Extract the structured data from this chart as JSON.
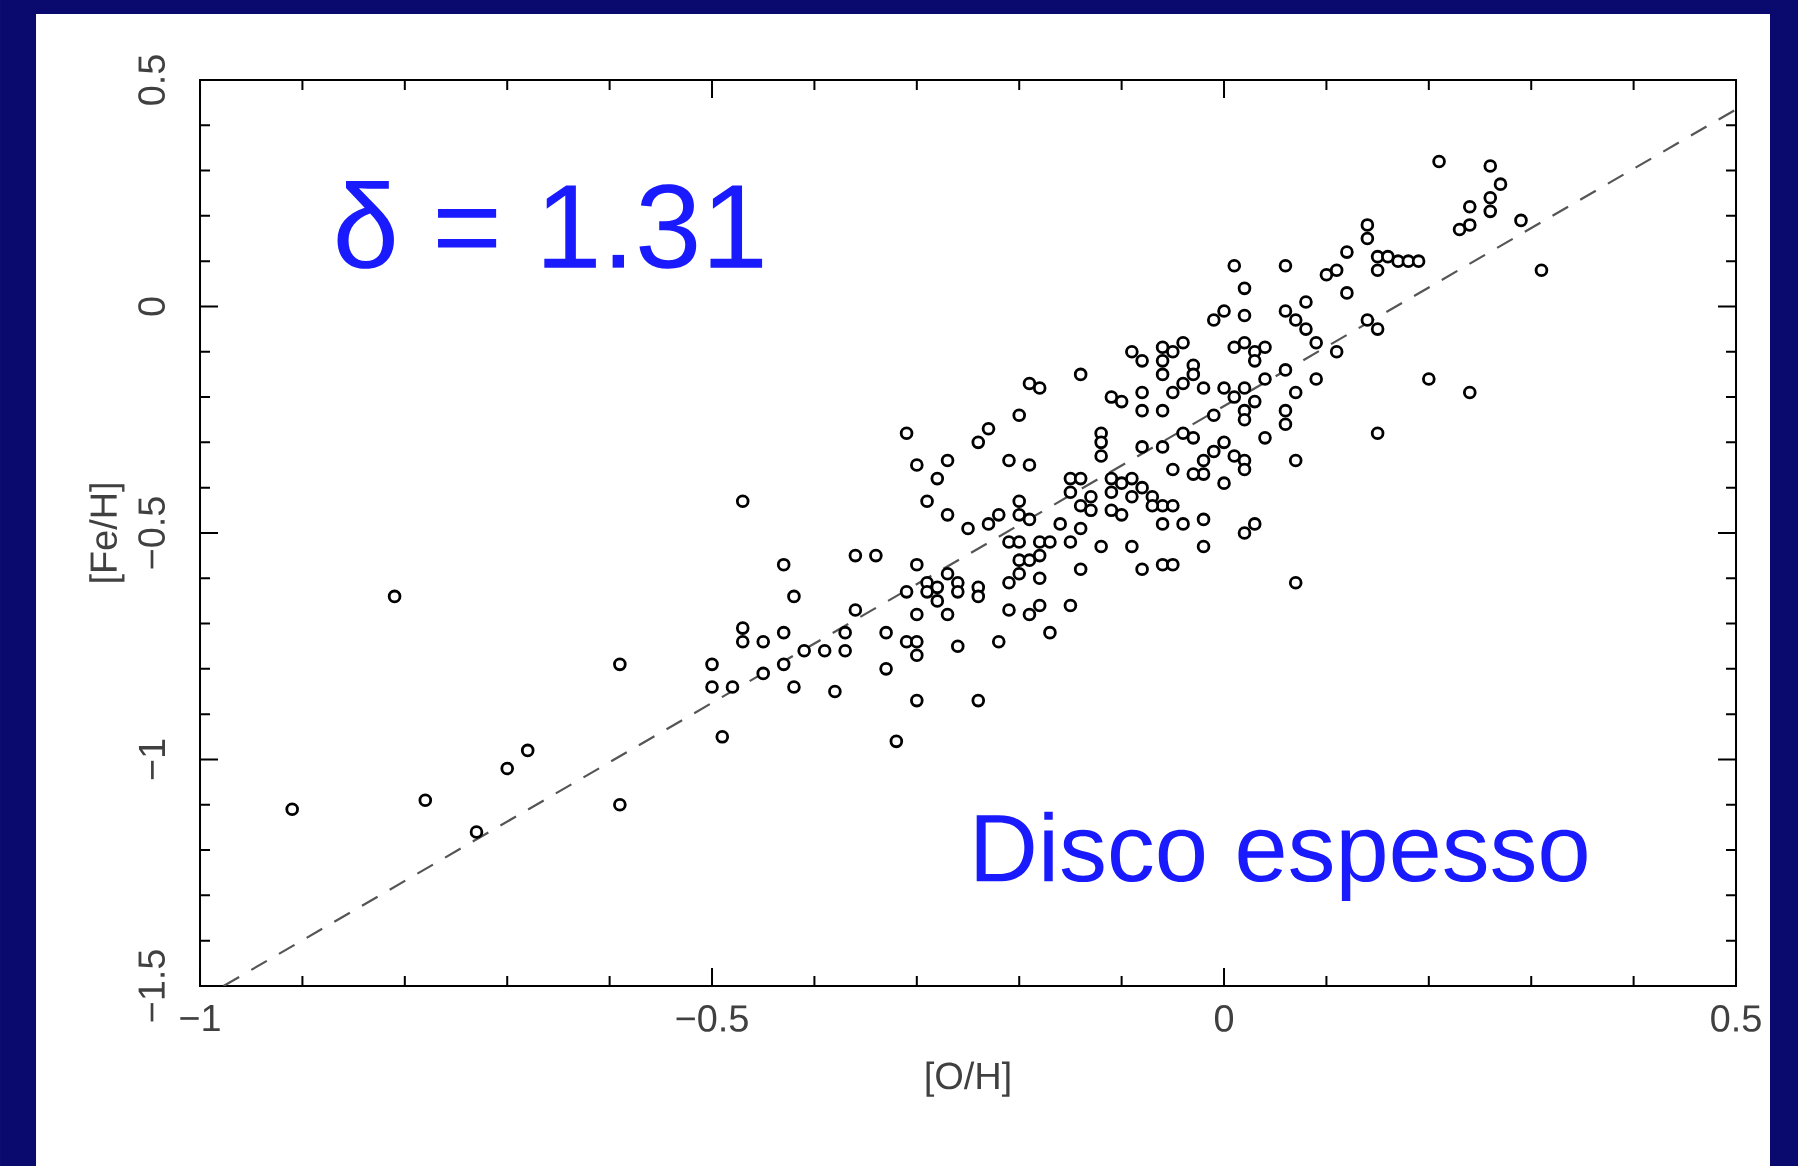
{
  "chart_data": {
    "type": "scatter",
    "xlabel": "[O/H]",
    "ylabel": "[Fe/H]",
    "xlim": [
      -1,
      0.5
    ],
    "ylim": [
      -1.5,
      0.5
    ],
    "xticks": [
      {
        "value": -1,
        "label": "−1"
      },
      {
        "value": -0.5,
        "label": "−0.5"
      },
      0,
      0.5
    ],
    "yticks": [
      {
        "value": -1.5,
        "label": "−1.5"
      },
      {
        "value": -1,
        "label": "−1"
      },
      {
        "value": -0.5,
        "label": "−0.5"
      },
      0,
      0.5
    ],
    "annotations": [
      "δ = 1.31",
      "Disco espesso"
    ],
    "series": [
      {
        "type": "scatter",
        "color": "#000000",
        "marker": "circle",
        "x": [
          -0.81,
          -0.91,
          -0.78,
          -0.73,
          -0.7,
          -0.68,
          -0.59,
          -0.59,
          -0.19,
          -0.18,
          -0.2,
          -0.31,
          -0.23,
          -0.24,
          -0.3,
          -0.27,
          -0.28,
          -0.21,
          -0.19,
          -0.47,
          -0.29,
          -0.27,
          -0.25,
          -0.23,
          -0.22,
          -0.2,
          -0.2,
          -0.19,
          -0.21,
          -0.2,
          -0.18,
          -0.17,
          -0.2,
          -0.19,
          -0.18,
          -0.2,
          -0.18,
          -0.43,
          -0.36,
          -0.34,
          -0.3,
          -0.42,
          -0.27,
          -0.29,
          -0.28,
          -0.29,
          -0.28,
          -0.26,
          -0.26,
          -0.24,
          -0.24,
          -0.31,
          -0.21,
          -0.36,
          -0.3,
          -0.27,
          -0.21,
          -0.19,
          -0.18,
          -0.17,
          -0.47,
          -0.47,
          -0.45,
          -0.43,
          -0.37,
          -0.33,
          -0.31,
          -0.3,
          -0.3,
          -0.26,
          -0.22,
          -0.41,
          -0.39,
          -0.37,
          -0.5,
          -0.43,
          -0.45,
          -0.5,
          -0.48,
          -0.42,
          -0.38,
          -0.33,
          -0.3,
          -0.24,
          -0.49,
          -0.32,
          -0.14,
          0.01,
          0.06,
          0.02,
          0.12,
          0.1,
          0.11,
          0.12,
          0.14,
          0.14,
          0.15,
          0.15,
          0.16,
          0.17,
          0.18,
          0.19,
          0.08,
          0.06,
          0.07,
          0.08,
          0.09,
          0.14,
          0.15,
          0.11,
          0.2,
          0.0,
          -0.01,
          0.02,
          0.01,
          0.02,
          0.04,
          0.03,
          0.03,
          0.06,
          0.09,
          0.07,
          0.04,
          -0.09,
          -0.08,
          -0.06,
          -0.05,
          -0.04,
          -0.06,
          -0.06,
          -0.03,
          -0.03,
          -0.04,
          -0.02,
          -0.05,
          -0.11,
          -0.1,
          -0.08,
          -0.08,
          -0.06,
          0.0,
          0.01,
          0.02,
          0.03,
          0.02,
          0.02,
          -0.01,
          0.06,
          0.06,
          0.04,
          0.07,
          0.15,
          -0.12,
          -0.12,
          -0.12,
          -0.08,
          -0.06,
          -0.04,
          -0.03,
          -0.02,
          -0.01,
          0.0,
          0.01,
          0.02,
          0.02,
          -0.02,
          -0.03,
          -0.05,
          0.0,
          -0.15,
          -0.14,
          -0.15,
          -0.13,
          -0.14,
          -0.13,
          -0.11,
          -0.11,
          -0.1,
          -0.09,
          -0.08,
          -0.07,
          -0.06,
          -0.05,
          -0.11,
          -0.1,
          -0.09,
          -0.07,
          -0.16,
          -0.14,
          -0.15,
          -0.12,
          -0.09,
          -0.06,
          -0.04,
          -0.02,
          -0.02,
          0.02,
          0.03,
          -0.14,
          -0.08,
          -0.06,
          -0.05,
          -0.15,
          0.07,
          0.21,
          0.26,
          0.27,
          0.26,
          0.26,
          0.24,
          0.24,
          0.23,
          0.29,
          0.31,
          0.24
        ],
        "values": [
          -0.64,
          -1.11,
          -1.09,
          -1.16,
          -1.02,
          -0.98,
          -0.79,
          -1.1,
          -0.17,
          -0.18,
          -0.24,
          -0.28,
          -0.27,
          -0.3,
          -0.35,
          -0.34,
          -0.38,
          -0.34,
          -0.35,
          -0.43,
          -0.43,
          -0.46,
          -0.49,
          -0.48,
          -0.46,
          -0.43,
          -0.46,
          -0.47,
          -0.52,
          -0.52,
          -0.52,
          -0.52,
          -0.56,
          -0.56,
          -0.55,
          -0.59,
          -0.6,
          -0.57,
          -0.55,
          -0.55,
          -0.57,
          -0.64,
          -0.59,
          -0.61,
          -0.62,
          -0.63,
          -0.65,
          -0.61,
          -0.63,
          -0.62,
          -0.64,
          -0.63,
          -0.61,
          -0.67,
          -0.68,
          -0.68,
          -0.67,
          -0.68,
          -0.66,
          -0.72,
          -0.71,
          -0.74,
          -0.74,
          -0.72,
          -0.72,
          -0.72,
          -0.74,
          -0.74,
          -0.77,
          -0.75,
          -0.74,
          -0.76,
          -0.76,
          -0.76,
          -0.79,
          -0.79,
          -0.81,
          -0.84,
          -0.84,
          -0.84,
          -0.85,
          -0.8,
          -0.87,
          -0.87,
          -0.95,
          -0.96,
          -0.15,
          0.09,
          0.09,
          0.04,
          0.12,
          0.07,
          0.08,
          0.03,
          0.15,
          0.18,
          0.11,
          0.08,
          0.11,
          0.1,
          0.1,
          0.1,
          0.01,
          -0.01,
          -0.03,
          -0.05,
          -0.08,
          -0.03,
          -0.05,
          -0.1,
          -0.16,
          -0.01,
          -0.03,
          -0.02,
          -0.09,
          -0.08,
          -0.09,
          -0.1,
          -0.12,
          -0.14,
          -0.16,
          -0.19,
          -0.16,
          -0.1,
          -0.12,
          -0.09,
          -0.1,
          -0.08,
          -0.12,
          -0.15,
          -0.13,
          -0.15,
          -0.17,
          -0.18,
          -0.19,
          -0.2,
          -0.21,
          -0.19,
          -0.23,
          -0.23,
          -0.18,
          -0.2,
          -0.18,
          -0.21,
          -0.23,
          -0.25,
          -0.24,
          -0.23,
          -0.26,
          -0.29,
          -0.34,
          -0.28,
          -0.28,
          -0.3,
          -0.33,
          -0.31,
          -0.31,
          -0.28,
          -0.29,
          -0.34,
          -0.32,
          -0.3,
          -0.33,
          -0.34,
          -0.36,
          -0.37,
          -0.37,
          -0.36,
          -0.39,
          -0.38,
          -0.38,
          -0.41,
          -0.42,
          -0.44,
          -0.45,
          -0.38,
          -0.41,
          -0.39,
          -0.38,
          -0.4,
          -0.42,
          -0.44,
          -0.44,
          -0.45,
          -0.46,
          -0.42,
          -0.44,
          -0.48,
          -0.49,
          -0.52,
          -0.53,
          -0.53,
          -0.48,
          -0.48,
          -0.47,
          -0.53,
          -0.5,
          -0.48,
          -0.58,
          -0.58,
          -0.57,
          -0.57,
          -0.66,
          -0.61,
          0.32,
          0.31,
          0.27,
          0.24,
          0.21,
          0.22,
          0.18,
          0.17,
          0.19,
          0.08,
          -0.19
        ]
      },
      {
        "type": "line",
        "color": "#555555",
        "marker": "none",
        "line_style": "dashed",
        "x": [
          -0.977,
          0.5
        ],
        "values": [
          -1.5,
          0.435
        ]
      }
    ]
  }
}
